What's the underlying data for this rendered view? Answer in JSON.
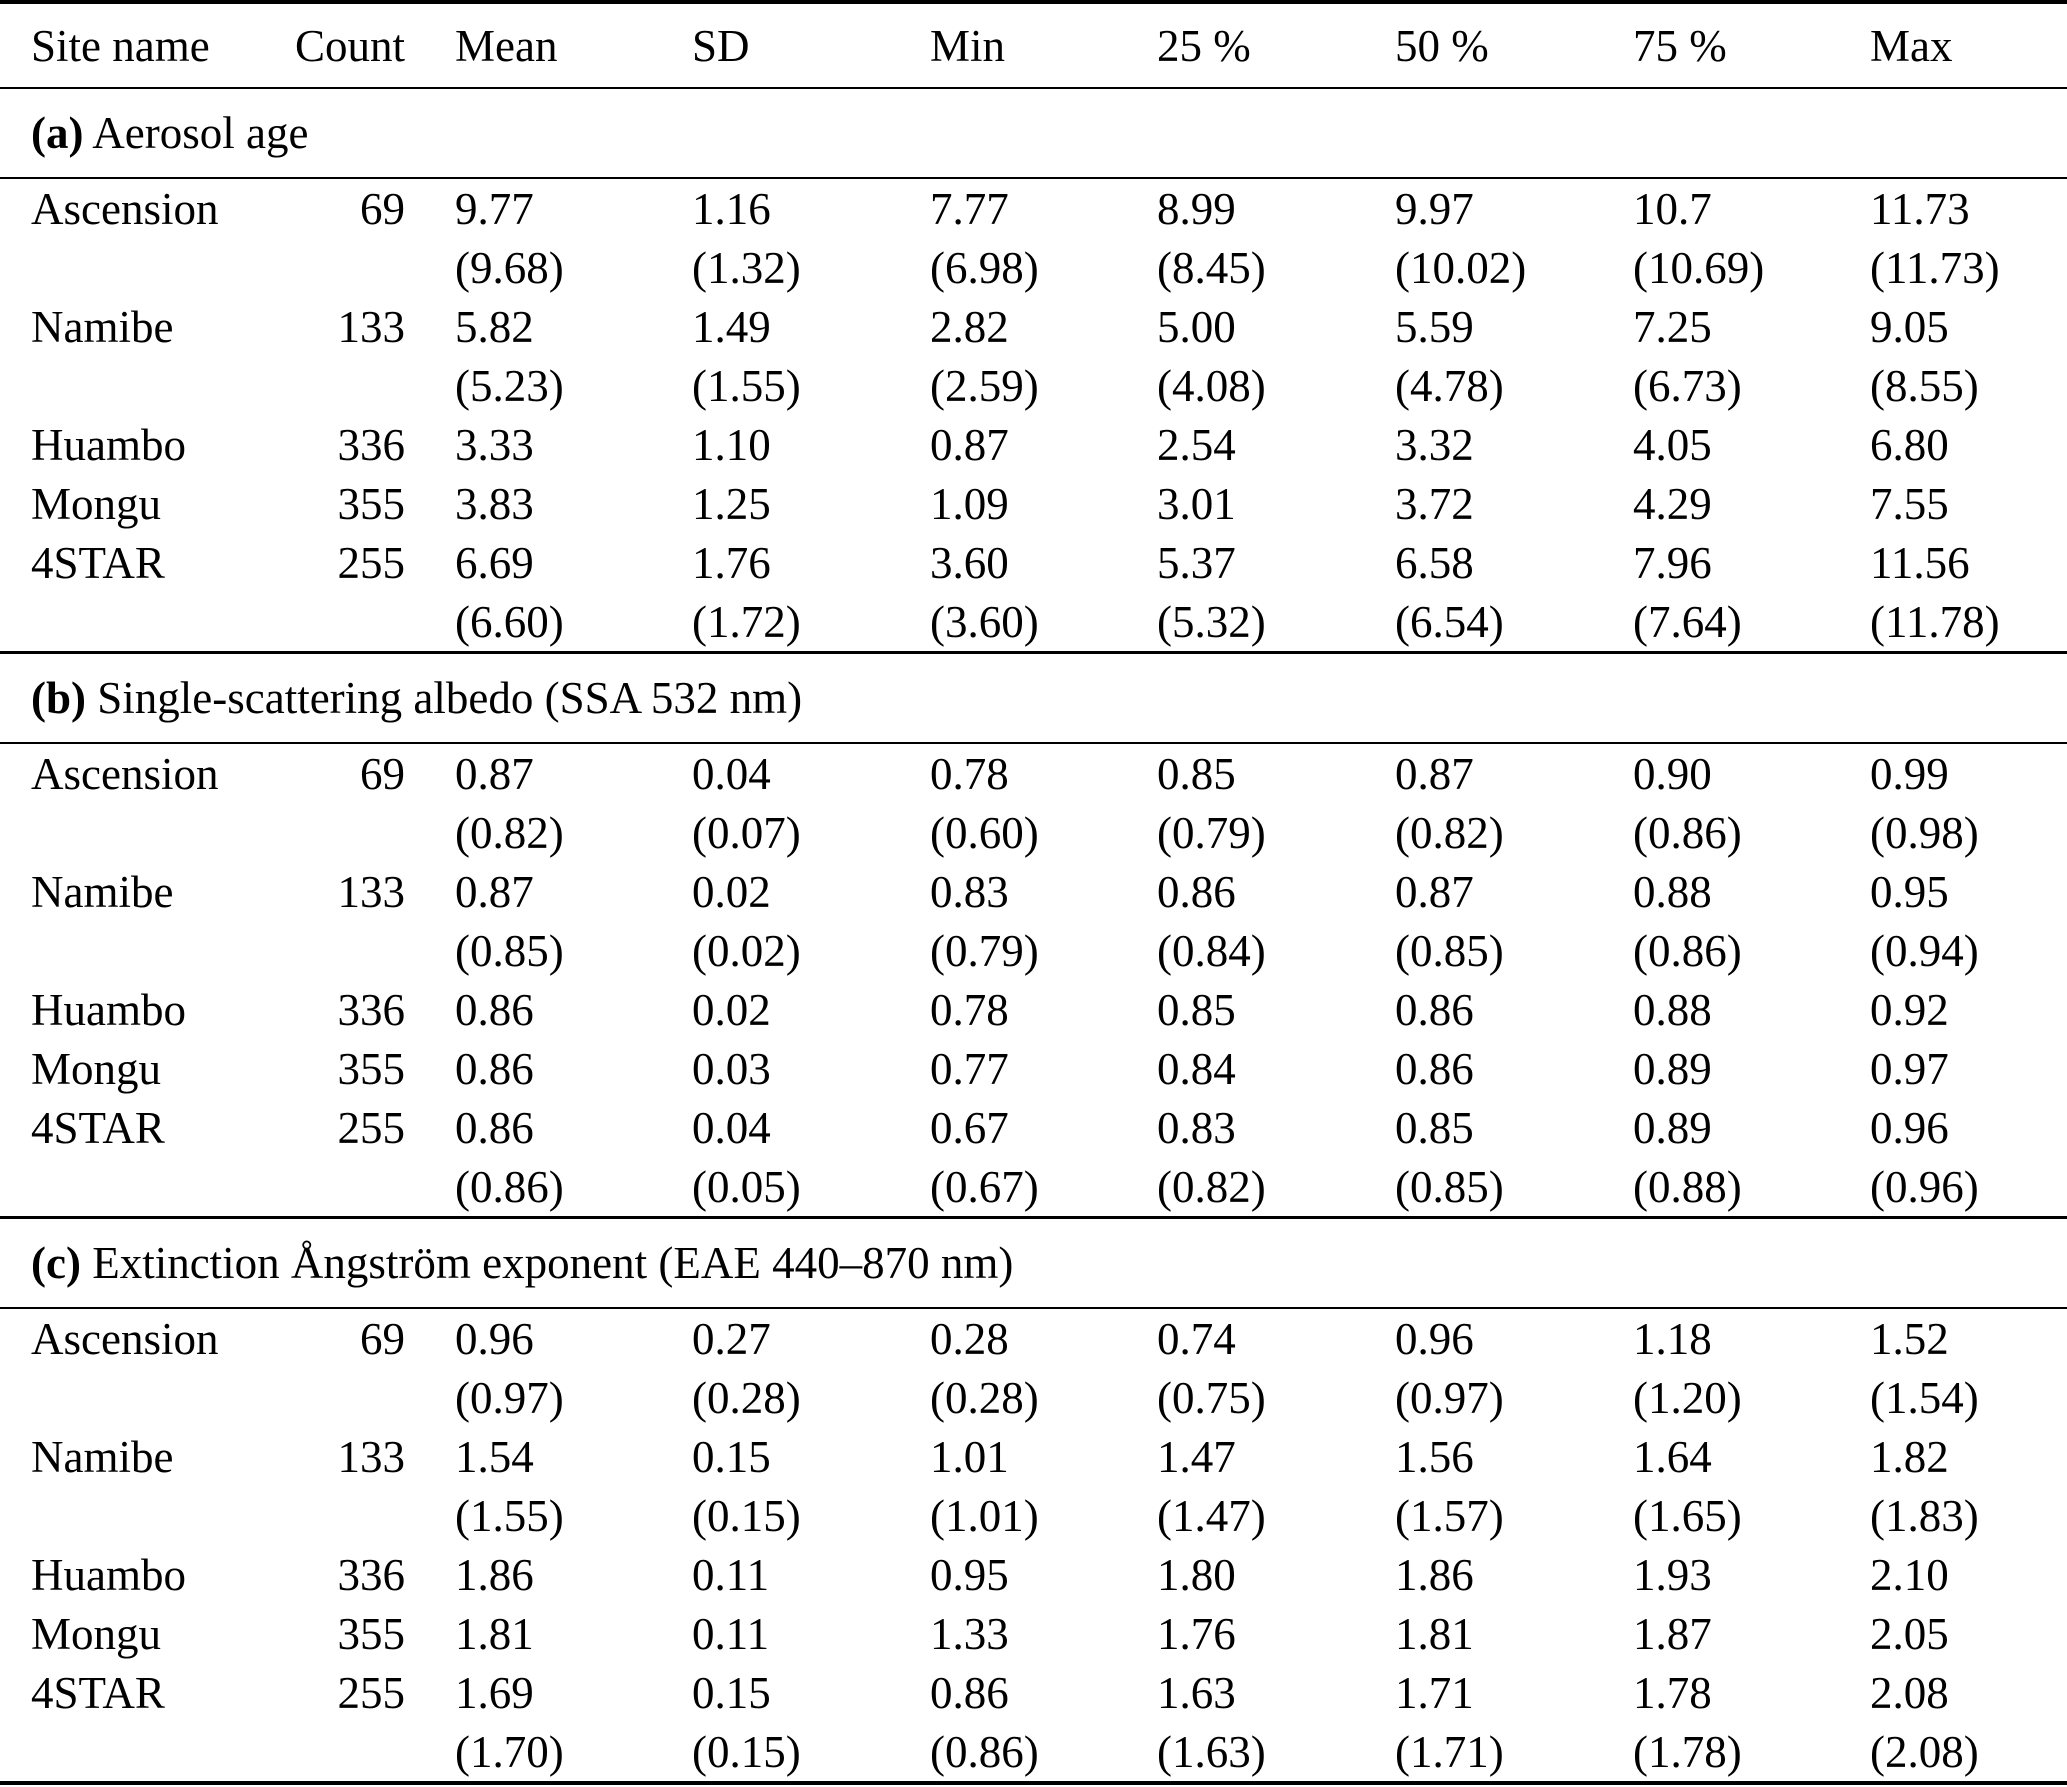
{
  "colors": {
    "text": "#000000",
    "background": "#ffffff",
    "rules": "#000000"
  },
  "table": {
    "columns": [
      "Site name",
      "Count",
      "Mean",
      "SD",
      "Min",
      "25 %",
      "50 %",
      "75 %",
      "Max"
    ],
    "sections": [
      {
        "prefix": "(a)",
        "label": "Aerosol age",
        "rows": [
          {
            "site": "Ascension",
            "count": "69",
            "values": [
              "9.77",
              "1.16",
              "7.77",
              "8.99",
              "9.97",
              "10.7",
              "11.73"
            ],
            "paren": [
              "(9.68)",
              "(1.32)",
              "(6.98)",
              "(8.45)",
              "(10.02)",
              "(10.69)",
              "(11.73)"
            ]
          },
          {
            "site": "Namibe",
            "count": "133",
            "values": [
              "5.82",
              "1.49",
              "2.82",
              "5.00",
              "5.59",
              "7.25",
              "9.05"
            ],
            "paren": [
              "(5.23)",
              "(1.55)",
              "(2.59)",
              "(4.08)",
              "(4.78)",
              "(6.73)",
              "(8.55)"
            ]
          },
          {
            "site": "Huambo",
            "count": "336",
            "values": [
              "3.33",
              "1.10",
              "0.87",
              "2.54",
              "3.32",
              "4.05",
              "6.80"
            ]
          },
          {
            "site": "Mongu",
            "count": "355",
            "values": [
              "3.83",
              "1.25",
              "1.09",
              "3.01",
              "3.72",
              "4.29",
              "7.55"
            ]
          },
          {
            "site": "4STAR",
            "count": "255",
            "values": [
              "6.69",
              "1.76",
              "3.60",
              "5.37",
              "6.58",
              "7.96",
              "11.56"
            ],
            "paren": [
              "(6.60)",
              "(1.72)",
              "(3.60)",
              "(5.32)",
              "(6.54)",
              "(7.64)",
              "(11.78)"
            ]
          }
        ]
      },
      {
        "prefix": "(b)",
        "label": "Single-scattering albedo (SSA 532 nm)",
        "rows": [
          {
            "site": "Ascension",
            "count": "69",
            "values": [
              "0.87",
              "0.04",
              "0.78",
              "0.85",
              "0.87",
              "0.90",
              "0.99"
            ],
            "paren": [
              "(0.82)",
              "(0.07)",
              "(0.60)",
              "(0.79)",
              "(0.82)",
              "(0.86)",
              "(0.98)"
            ]
          },
          {
            "site": "Namibe",
            "count": "133",
            "values": [
              "0.87",
              "0.02",
              "0.83",
              "0.86",
              "0.87",
              "0.88",
              "0.95"
            ],
            "paren": [
              "(0.85)",
              "(0.02)",
              "(0.79)",
              "(0.84)",
              "(0.85)",
              "(0.86)",
              "(0.94)"
            ]
          },
          {
            "site": "Huambo",
            "count": "336",
            "values": [
              "0.86",
              "0.02",
              "0.78",
              "0.85",
              "0.86",
              "0.88",
              "0.92"
            ]
          },
          {
            "site": "Mongu",
            "count": "355",
            "values": [
              "0.86",
              "0.03",
              "0.77",
              "0.84",
              "0.86",
              "0.89",
              "0.97"
            ]
          },
          {
            "site": "4STAR",
            "count": "255",
            "values": [
              "0.86",
              "0.04",
              "0.67",
              "0.83",
              "0.85",
              "0.89",
              "0.96"
            ],
            "paren": [
              "(0.86)",
              "(0.05)",
              "(0.67)",
              "(0.82)",
              "(0.85)",
              "(0.88)",
              "(0.96)"
            ]
          }
        ]
      },
      {
        "prefix": "(c)",
        "label": "Extinction Ångström exponent (EAE 440–870 nm)",
        "rows": [
          {
            "site": "Ascension",
            "count": "69",
            "values": [
              "0.96",
              "0.27",
              "0.28",
              "0.74",
              "0.96",
              "1.18",
              "1.52"
            ],
            "paren": [
              "(0.97)",
              "(0.28)",
              "(0.28)",
              "(0.75)",
              "(0.97)",
              "(1.20)",
              "(1.54)"
            ]
          },
          {
            "site": "Namibe",
            "count": "133",
            "values": [
              "1.54",
              "0.15",
              "1.01",
              "1.47",
              "1.56",
              "1.64",
              "1.82"
            ],
            "paren": [
              "(1.55)",
              "(0.15)",
              "(1.01)",
              "(1.47)",
              "(1.57)",
              "(1.65)",
              "(1.83)"
            ]
          },
          {
            "site": "Huambo",
            "count": "336",
            "values": [
              "1.86",
              "0.11",
              "0.95",
              "1.80",
              "1.86",
              "1.93",
              "2.10"
            ]
          },
          {
            "site": "Mongu",
            "count": "355",
            "values": [
              "1.81",
              "0.11",
              "1.33",
              "1.76",
              "1.81",
              "1.87",
              "2.05"
            ]
          },
          {
            "site": "4STAR",
            "count": "255",
            "values": [
              "1.69",
              "0.15",
              "0.86",
              "1.63",
              "1.71",
              "1.78",
              "2.08"
            ],
            "paren": [
              "(1.70)",
              "(0.15)",
              "(0.86)",
              "(1.63)",
              "(1.71)",
              "(1.78)",
              "(2.08)"
            ]
          }
        ]
      }
    ]
  }
}
